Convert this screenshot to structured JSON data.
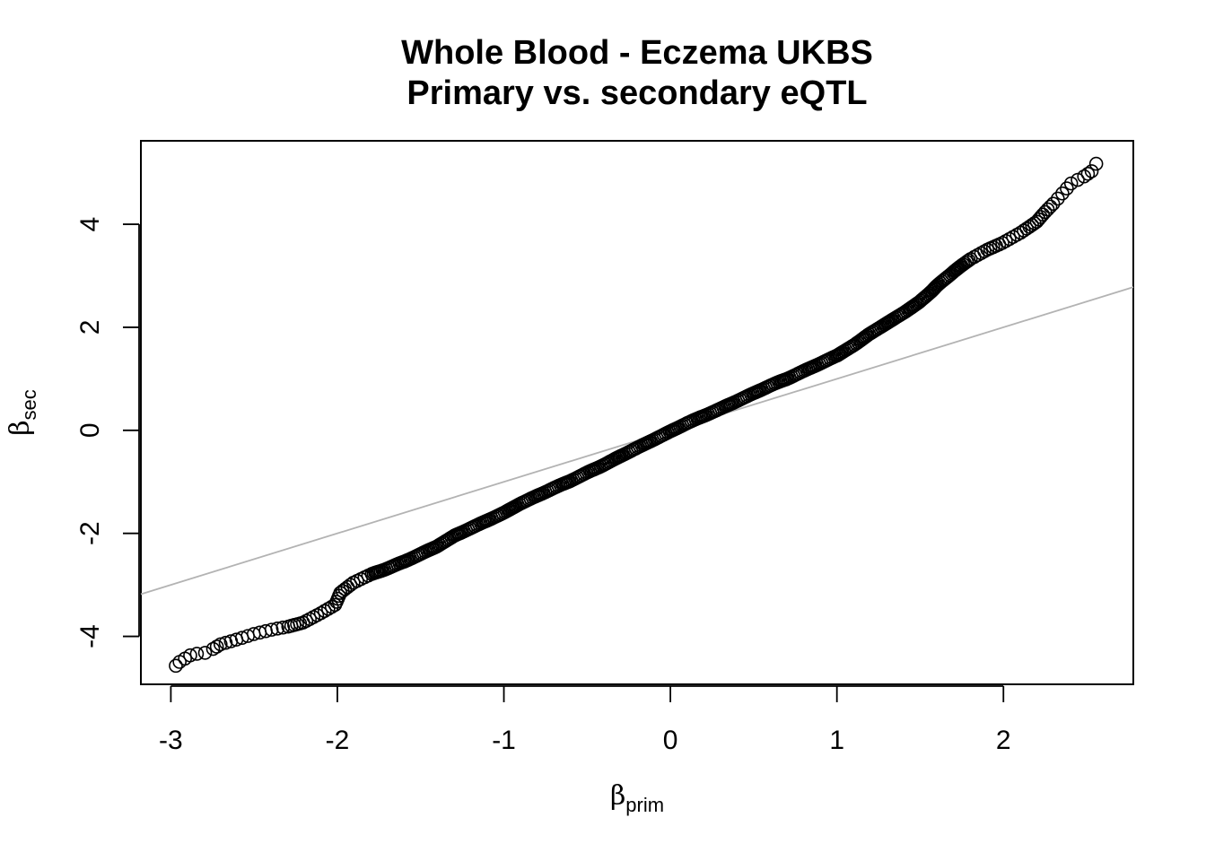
{
  "chart_data": {
    "type": "scatter",
    "title": "Whole Blood - Eczema UKBS",
    "subtitle": "Primary vs. secondary eQTL",
    "xlabel": {
      "symbol": "β",
      "subscript": "prim"
    },
    "ylabel": {
      "symbol": "β",
      "subscript": "sec"
    },
    "xlim": [
      -3.18,
      2.78
    ],
    "ylim": [
      -4.93,
      5.62
    ],
    "x_ticks": [
      -3,
      -2,
      -1,
      0,
      1,
      2
    ],
    "x_tick_labels": [
      "-3",
      "-2",
      "-1",
      "0",
      "1",
      "2"
    ],
    "y_ticks": [
      -4,
      -2,
      0,
      2,
      4
    ],
    "y_tick_labels": [
      "-4",
      "-2",
      "0",
      "2",
      "4"
    ],
    "grid": false,
    "reference_line": {
      "intercept": 0,
      "slope": 1,
      "color": "#b3b3b3"
    },
    "marker": {
      "shape": "open-circle",
      "color": "#000000"
    },
    "series": [
      {
        "curve_points": [
          [
            -2.97,
            -4.57
          ],
          [
            -2.95,
            -4.5
          ],
          [
            -2.92,
            -4.44
          ],
          [
            -2.89,
            -4.38
          ],
          [
            -2.85,
            -4.35
          ],
          [
            -2.8,
            -4.33
          ],
          [
            -2.75,
            -4.25
          ],
          [
            -2.7,
            -4.15
          ],
          [
            -2.6,
            -4.05
          ],
          [
            -2.5,
            -3.95
          ],
          [
            -2.4,
            -3.88
          ],
          [
            -2.3,
            -3.82
          ],
          [
            -2.2,
            -3.72
          ],
          [
            -2.1,
            -3.55
          ],
          [
            -2.02,
            -3.4
          ],
          [
            -1.98,
            -3.15
          ],
          [
            -1.9,
            -2.95
          ],
          [
            -1.8,
            -2.8
          ],
          [
            -1.7,
            -2.68
          ],
          [
            -1.6,
            -2.55
          ],
          [
            -1.5,
            -2.4
          ],
          [
            -1.4,
            -2.25
          ],
          [
            -1.3,
            -2.05
          ],
          [
            -1.2,
            -1.9
          ],
          [
            -1.1,
            -1.75
          ],
          [
            -1.0,
            -1.6
          ],
          [
            -0.9,
            -1.42
          ],
          [
            -0.8,
            -1.27
          ],
          [
            -0.7,
            -1.12
          ],
          [
            -0.6,
            -0.98
          ],
          [
            -0.5,
            -0.82
          ],
          [
            -0.4,
            -0.67
          ],
          [
            -0.3,
            -0.5
          ],
          [
            -0.2,
            -0.34
          ],
          [
            -0.1,
            -0.18
          ],
          [
            0.0,
            -0.02
          ],
          [
            0.1,
            0.14
          ],
          [
            0.2,
            0.28
          ],
          [
            0.3,
            0.42
          ],
          [
            0.4,
            0.57
          ],
          [
            0.5,
            0.72
          ],
          [
            0.6,
            0.87
          ],
          [
            0.7,
            1.0
          ],
          [
            0.8,
            1.15
          ],
          [
            0.9,
            1.3
          ],
          [
            1.0,
            1.45
          ],
          [
            1.1,
            1.65
          ],
          [
            1.2,
            1.88
          ],
          [
            1.3,
            2.08
          ],
          [
            1.4,
            2.28
          ],
          [
            1.5,
            2.5
          ],
          [
            1.6,
            2.8
          ],
          [
            1.7,
            3.08
          ],
          [
            1.8,
            3.32
          ],
          [
            1.9,
            3.5
          ],
          [
            2.0,
            3.65
          ],
          [
            2.1,
            3.83
          ],
          [
            2.2,
            4.05
          ],
          [
            2.3,
            4.4
          ],
          [
            2.4,
            4.78
          ],
          [
            2.48,
            4.92
          ],
          [
            2.53,
            5.03
          ],
          [
            2.56,
            5.18
          ]
        ]
      }
    ]
  }
}
